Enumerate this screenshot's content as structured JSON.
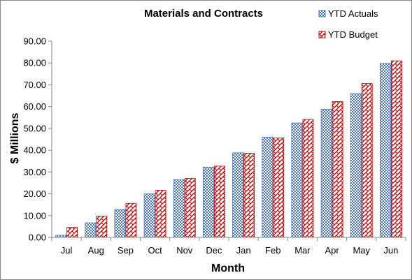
{
  "chart_data": {
    "type": "bar",
    "title": "Materials and Contracts",
    "xlabel": "Month",
    "ylabel": "$ Millions",
    "ylim": [
      0,
      90
    ],
    "y_ticks": [
      "0.00",
      "10.00",
      "20.00",
      "30.00",
      "40.00",
      "50.00",
      "60.00",
      "70.00",
      "80.00",
      "90.00"
    ],
    "grid": false,
    "legend_position": "top-right",
    "categories": [
      "Jul",
      "Aug",
      "Sep",
      "Oct",
      "Nov",
      "Dec",
      "Jan",
      "Feb",
      "Mar",
      "Apr",
      "May",
      "Jun"
    ],
    "series": [
      {
        "name": "YTD Actuals",
        "pattern": "checker",
        "color": "#4472C4",
        "values": [
          1.0,
          6.7,
          12.8,
          20.0,
          26.5,
          32.2,
          38.8,
          46.0,
          52.5,
          58.8,
          66.0,
          79.8
        ]
      },
      {
        "name": "YTD Budget",
        "pattern": "weave",
        "color": "#C00000",
        "values": [
          4.6,
          9.8,
          15.6,
          21.6,
          27.1,
          32.7,
          38.6,
          45.6,
          54.1,
          62.3,
          70.6,
          81.0
        ]
      }
    ]
  }
}
